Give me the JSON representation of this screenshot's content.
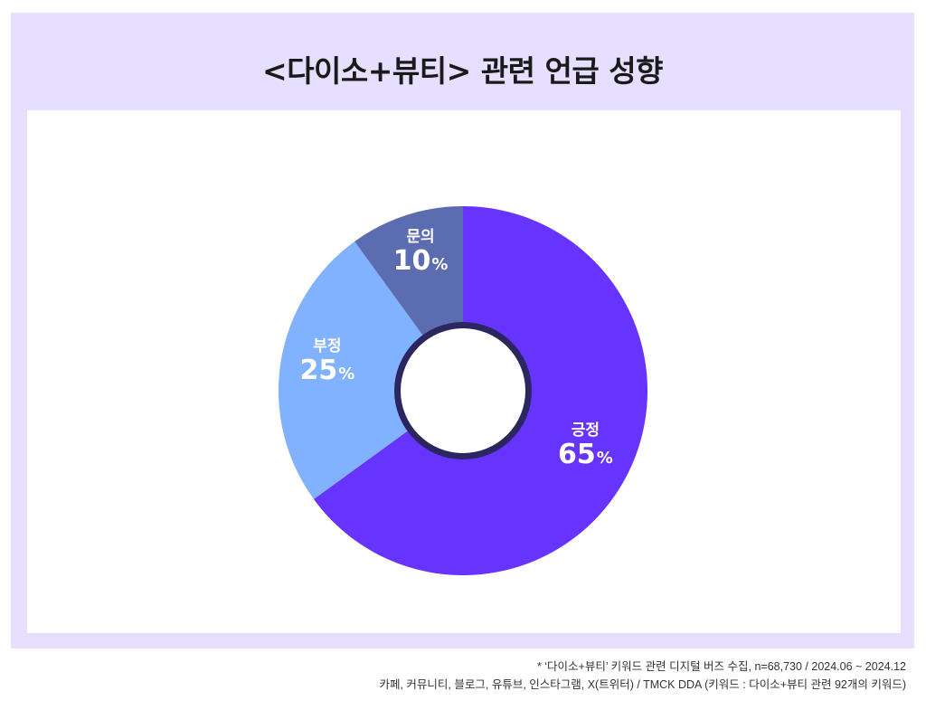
{
  "title": "<다이소+뷰티> 관련 언급 성향",
  "footnote": {
    "line1": "* ‘다이소+뷰티’ 키워드 관련 디지털 버즈 수집, n=68,730 / 2024.06 ~ 2024.12",
    "line2": "카페, 커뮤니티, 블로그, 유튜브, 인스타그램, X(트위터) / TMCK DDA (키워드 : 다이소+뷰티 관련 92개의 키워드)"
  },
  "chart_data": {
    "type": "pie",
    "variant": "donut",
    "title": "<다이소+뷰티> 관련 언급 성향",
    "categories": [
      "긍정",
      "부정",
      "문의"
    ],
    "values": [
      65,
      25,
      10
    ],
    "value_labels": [
      "65",
      "25",
      "10"
    ],
    "unit": "%",
    "colors": [
      "#6633ff",
      "#80b2ff",
      "#5b6db0"
    ],
    "start": "12 o'clock",
    "direction": "clockwise",
    "legend": "none"
  }
}
